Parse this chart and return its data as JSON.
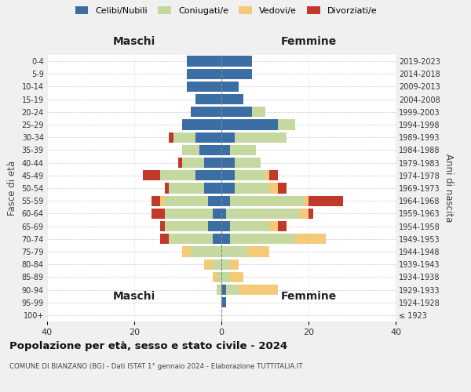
{
  "age_groups": [
    "100+",
    "95-99",
    "90-94",
    "85-89",
    "80-84",
    "75-79",
    "70-74",
    "65-69",
    "60-64",
    "55-59",
    "50-54",
    "45-49",
    "40-44",
    "35-39",
    "30-34",
    "25-29",
    "20-24",
    "15-19",
    "10-14",
    "5-9",
    "0-4"
  ],
  "birth_years": [
    "≤ 1923",
    "1924-1928",
    "1929-1933",
    "1934-1938",
    "1939-1943",
    "1944-1948",
    "1949-1953",
    "1954-1958",
    "1959-1963",
    "1964-1968",
    "1969-1973",
    "1974-1978",
    "1979-1983",
    "1984-1988",
    "1989-1993",
    "1994-1998",
    "1999-2003",
    "2004-2008",
    "2009-2013",
    "2014-2018",
    "2019-2023"
  ],
  "colors": {
    "celibi": "#3a6ea5",
    "coniugati": "#c5d8a0",
    "vedovi": "#f5c97a",
    "divorziati": "#c0392b"
  },
  "maschi": {
    "celibi": [
      0,
      0,
      0,
      0,
      0,
      0,
      2,
      3,
      2,
      3,
      4,
      6,
      4,
      5,
      6,
      9,
      7,
      6,
      8,
      8,
      8
    ],
    "coniugati": [
      0,
      0,
      1,
      1,
      2,
      7,
      10,
      10,
      11,
      10,
      8,
      8,
      5,
      4,
      5,
      0,
      0,
      0,
      0,
      0,
      0
    ],
    "vedovi": [
      0,
      0,
      0,
      1,
      2,
      2,
      0,
      0,
      0,
      1,
      0,
      0,
      0,
      0,
      0,
      0,
      0,
      0,
      0,
      0,
      0
    ],
    "divorziati": [
      0,
      0,
      0,
      0,
      0,
      0,
      2,
      1,
      3,
      2,
      1,
      4,
      1,
      0,
      1,
      0,
      0,
      0,
      0,
      0,
      0
    ]
  },
  "femmine": {
    "celibi": [
      0,
      1,
      1,
      0,
      0,
      0,
      2,
      2,
      1,
      2,
      3,
      3,
      3,
      2,
      3,
      13,
      7,
      5,
      4,
      7,
      7
    ],
    "coniugati": [
      0,
      0,
      3,
      2,
      2,
      6,
      15,
      9,
      17,
      17,
      8,
      7,
      6,
      6,
      12,
      4,
      3,
      0,
      0,
      0,
      0
    ],
    "vedovi": [
      0,
      0,
      9,
      3,
      2,
      5,
      7,
      2,
      2,
      1,
      2,
      1,
      0,
      0,
      0,
      0,
      0,
      0,
      0,
      0,
      0
    ],
    "divorziati": [
      0,
      0,
      0,
      0,
      0,
      0,
      0,
      2,
      1,
      8,
      2,
      2,
      0,
      0,
      0,
      0,
      0,
      0,
      0,
      0,
      0
    ]
  },
  "xlim": 40,
  "title": "Popolazione per età, sesso e stato civile - 2024",
  "subtitle": "COMUNE DI BIANZANO (BG) - Dati ISTAT 1° gennaio 2024 - Elaborazione TUTTITALIA.IT",
  "ylabel_left": "Fasce di età",
  "ylabel_right": "Anni di nascita",
  "xlabel_maschi": "Maschi",
  "xlabel_femmine": "Femmine",
  "legend_labels": [
    "Celibi/Nubili",
    "Coniugati/e",
    "Vedovi/e",
    "Divorziati/e"
  ],
  "bg_color": "#f0f0f0",
  "plot_bg": "#ffffff"
}
